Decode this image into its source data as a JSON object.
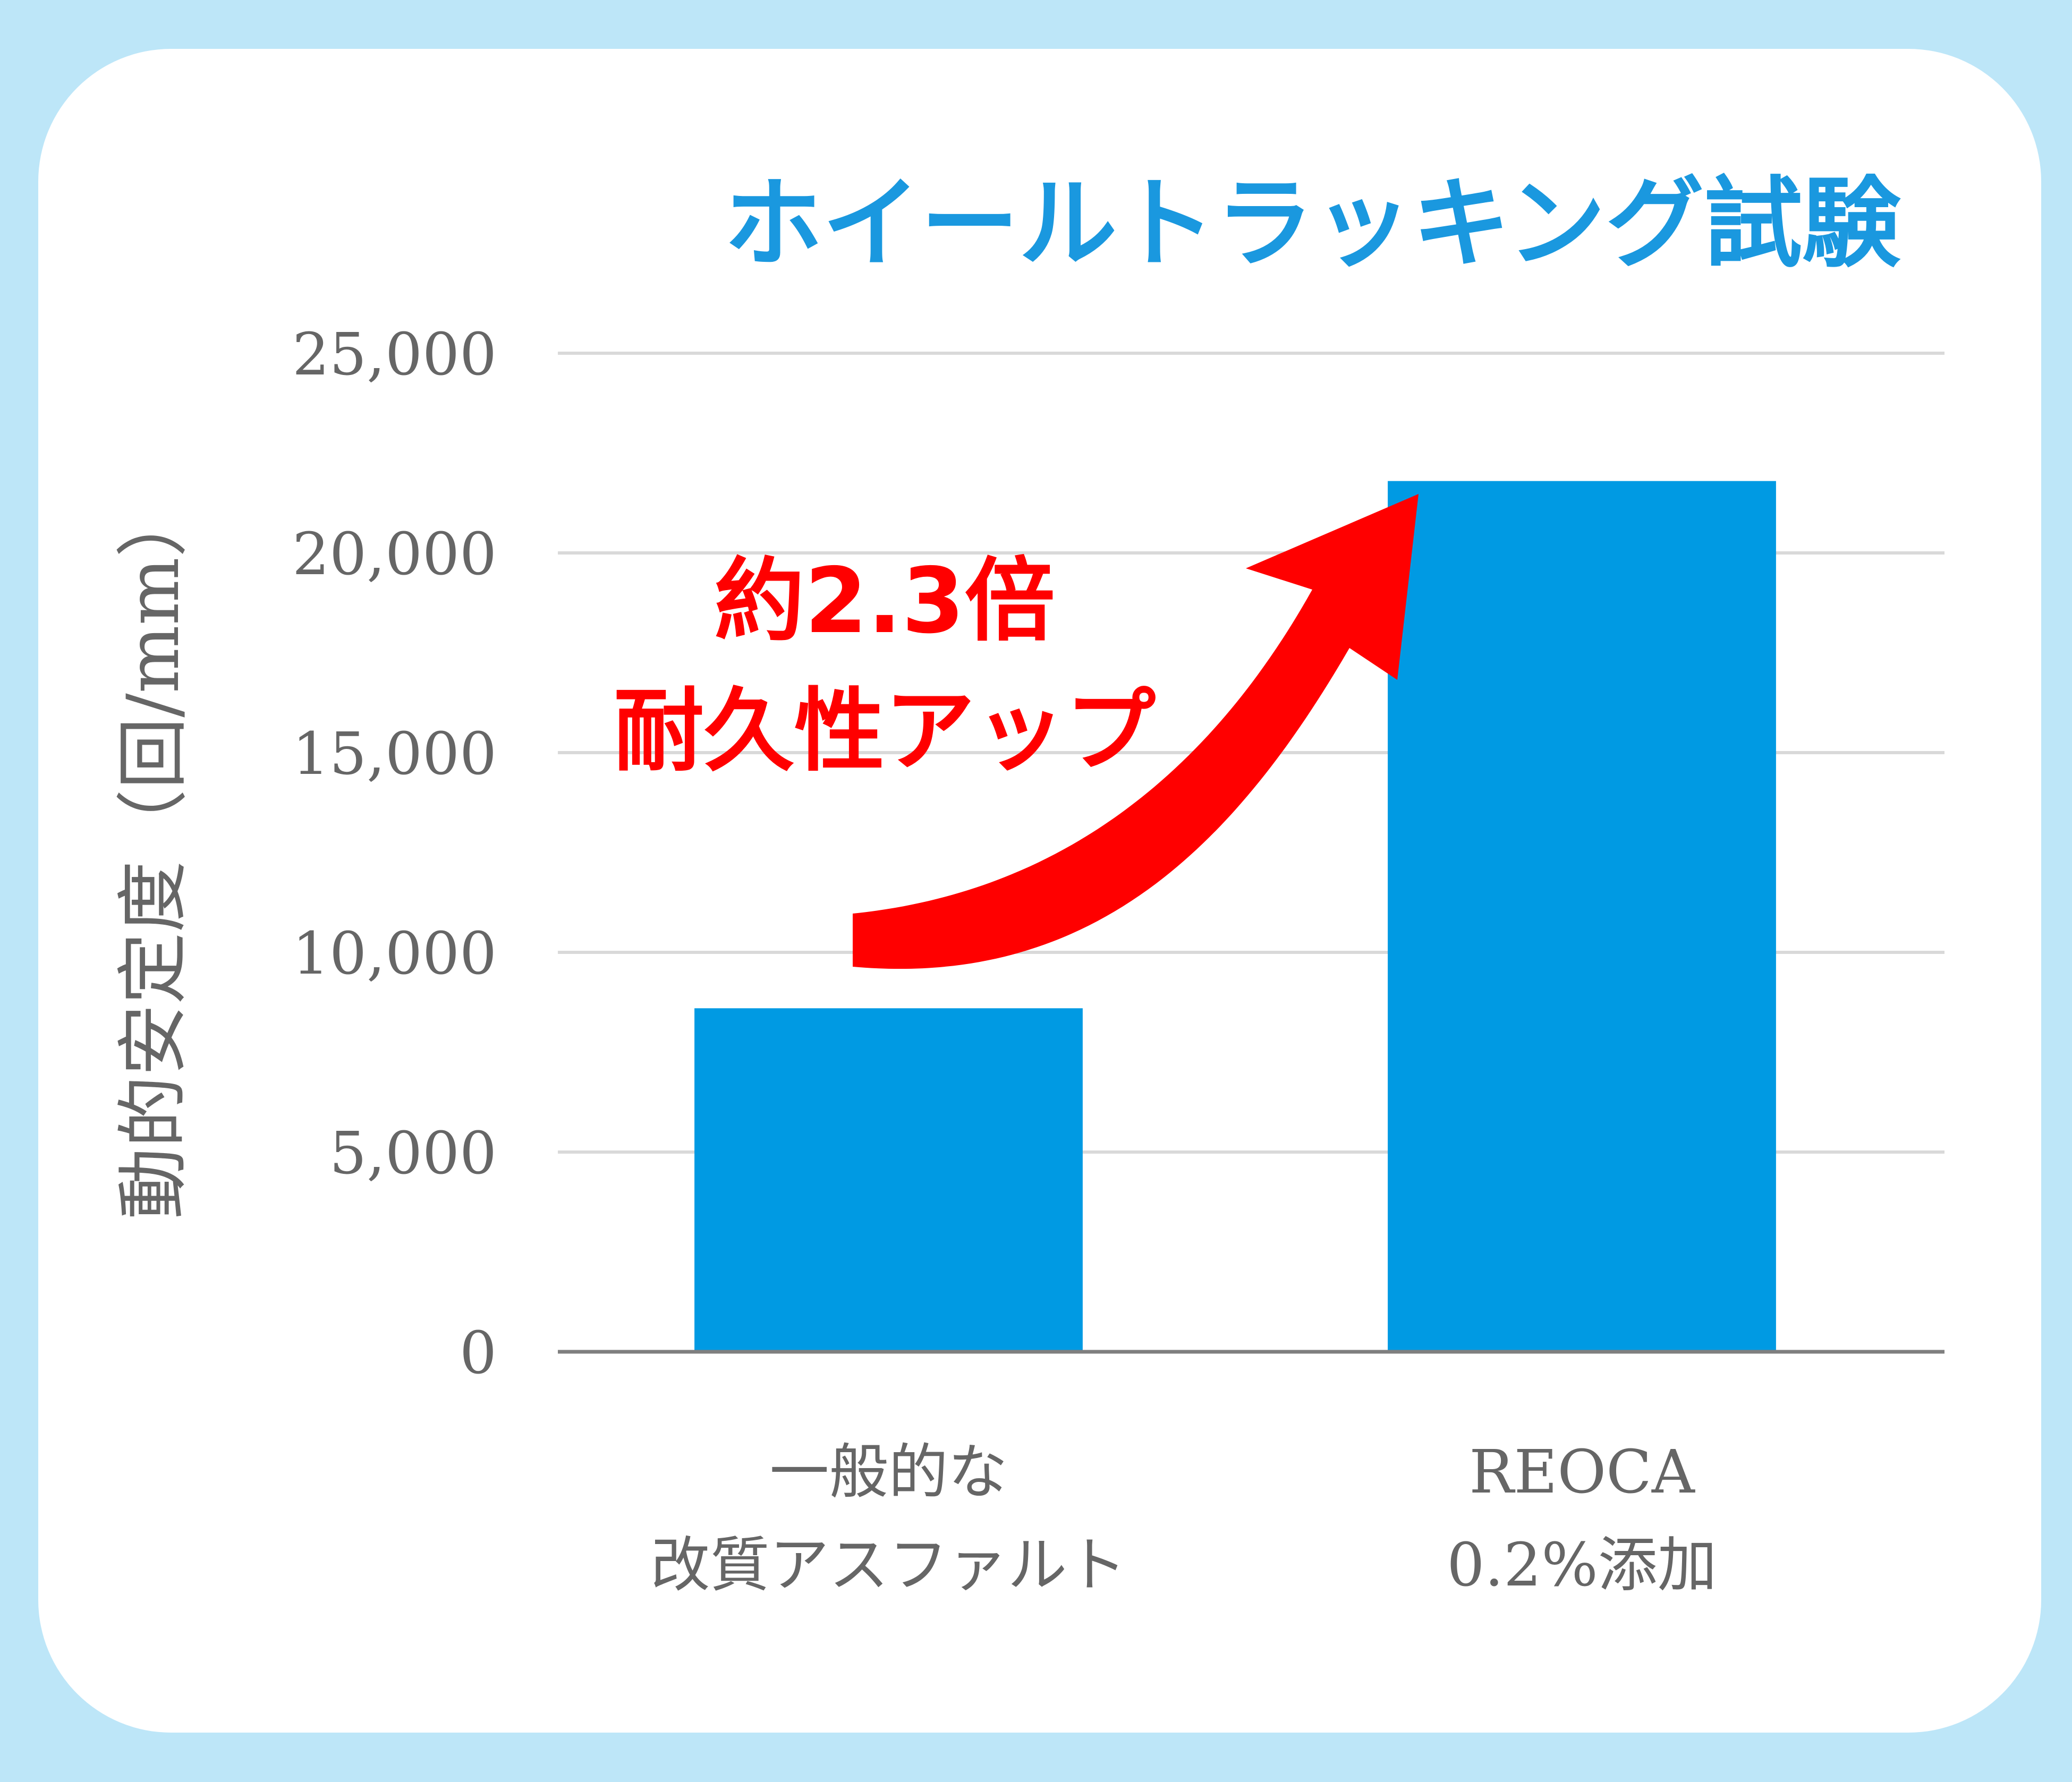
{
  "colors": {
    "frame": "#bde6f8",
    "panel": "#ffffff",
    "bar": "#009ae3",
    "title": "#1a98df",
    "annotation": "#ff0000",
    "axis_text": "#666666",
    "gridline": "#d9d9d9",
    "baseline": "#7f7f7f"
  },
  "chart_data": {
    "type": "bar",
    "title": "ホイールトラッキング試験",
    "ylabel": "動的安定度（回/mm）",
    "xlabel": "",
    "ylim": [
      0,
      25000
    ],
    "yticks": [
      0,
      5000,
      10000,
      15000,
      20000,
      25000
    ],
    "ytick_labels": [
      "0",
      "5,000",
      "10,000",
      "15,000",
      "20,000",
      "25,000"
    ],
    "grid": true,
    "categories": [
      [
        "一般的な",
        "改質アスファルト"
      ],
      [
        "REOCA",
        "0.2%添加"
      ]
    ],
    "values": [
      8600,
      21800
    ],
    "annotation": {
      "lines": [
        "約2.3倍",
        "耐久性アップ"
      ],
      "icon": "curved-arrow-up-right-icon"
    }
  }
}
